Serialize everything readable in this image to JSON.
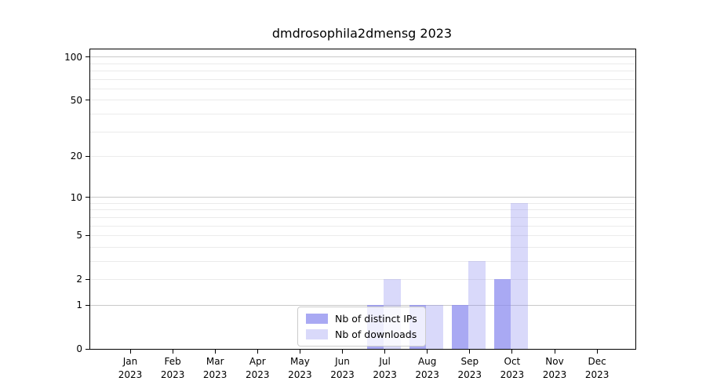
{
  "chart_data": {
    "type": "bar",
    "title": "dmdrosophila2dmensg 2023",
    "xlabel": "",
    "ylabel": "",
    "year": "2023",
    "categories": [
      "Jan",
      "Feb",
      "Mar",
      "Apr",
      "May",
      "Jun",
      "Jul",
      "Aug",
      "Sep",
      "Oct",
      "Nov",
      "Dec"
    ],
    "series": [
      {
        "name": "Nb of distinct IPs",
        "color": "rgba(136,136,238,0.72)",
        "values": [
          0,
          0,
          0,
          0,
          0,
          0,
          1,
          1,
          1,
          2,
          0,
          0
        ]
      },
      {
        "name": "Nb of downloads",
        "color": "rgba(136,136,238,0.32)",
        "values": [
          0,
          0,
          0,
          0,
          0,
          0,
          2,
          1,
          3,
          9,
          0,
          0
        ]
      }
    ],
    "yscale": "log1p",
    "ylim": [
      0,
      113
    ],
    "yticks": [
      100,
      50,
      20,
      10,
      5,
      2,
      1,
      0
    ],
    "major_gridlines": [
      1,
      10,
      100
    ],
    "minor_gridlines": [
      2,
      3,
      4,
      5,
      6,
      7,
      8,
      9,
      20,
      30,
      40,
      50,
      60,
      70,
      80,
      90
    ],
    "legend": {
      "position": "lower center"
    },
    "grid": "horizontal"
  },
  "colors": {
    "bar_dark": "rgba(136,136,238,0.72)",
    "bar_light": "rgba(136,136,238,0.32)",
    "major_grid": "#c9c9c9",
    "minor_grid": "#ebebeb",
    "spine": "#000000"
  }
}
